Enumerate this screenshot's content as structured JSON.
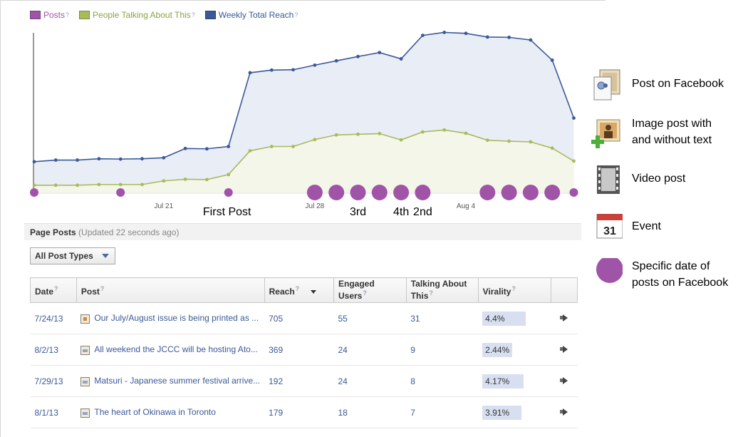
{
  "legend": [
    {
      "label": "Posts",
      "color": "#a054a8",
      "text_color": "#a054a8"
    },
    {
      "label": "People Talking About This",
      "color": "#a8bb5c",
      "text_color": "#8aa343"
    },
    {
      "label": "Weekly Total Reach",
      "color": "#3b5998",
      "text_color": "#3b5998"
    }
  ],
  "help_mark": "?",
  "chart_data": {
    "type": "line",
    "x_tick_labels": [
      {
        "label": "Jul 21",
        "index": 6
      },
      {
        "label": "Jul 28",
        "index": 13
      },
      {
        "label": "Aug 4",
        "index": 20
      }
    ],
    "series": [
      {
        "name": "Weekly Total Reach",
        "color": "#3b5998",
        "fill": "#e9edf6",
        "values": [
          93,
          98,
          98,
          102,
          101,
          102,
          105,
          133,
          132,
          139,
          362,
          370,
          371,
          385,
          398,
          411,
          423,
          404,
          475,
          484,
          481,
          470,
          469,
          461,
          400,
          225
        ]
      },
      {
        "name": "People Talking About This",
        "color": "#a8bb5c",
        "fill": "#f4f6ea",
        "values": [
          22,
          22,
          22,
          24,
          24,
          24,
          35,
          40,
          39,
          54,
          126,
          139,
          139,
          160,
          174,
          176,
          178,
          159,
          183,
          189,
          179,
          158,
          155,
          153,
          134,
          95
        ]
      }
    ],
    "posts": [
      {
        "index": 0,
        "size": "small"
      },
      {
        "index": 4,
        "size": "small"
      },
      {
        "index": 9,
        "size": "small"
      },
      {
        "index": 13,
        "size": "large"
      },
      {
        "index": 14,
        "size": "large"
      },
      {
        "index": 15,
        "size": "large"
      },
      {
        "index": 16,
        "size": "large"
      },
      {
        "index": 17,
        "size": "large"
      },
      {
        "index": 18,
        "size": "large"
      },
      {
        "index": 21,
        "size": "large"
      },
      {
        "index": 22,
        "size": "large"
      },
      {
        "index": 23,
        "size": "large"
      },
      {
        "index": 24,
        "size": "large"
      },
      {
        "index": 25,
        "size": "small"
      }
    ],
    "annotations": [
      {
        "label": "First Post",
        "index": 9
      },
      {
        "label": "3rd",
        "index": 15
      },
      {
        "label": "4th",
        "index": 17
      },
      {
        "label": "2nd",
        "index": 18
      }
    ],
    "ylim": [
      0,
      520
    ]
  },
  "page_posts": {
    "title": "Page Posts",
    "updated": "(Updated 22 seconds ago)"
  },
  "filter": {
    "label": "All Post Types"
  },
  "table": {
    "headers": {
      "date": "Date",
      "post": "Post",
      "reach": "Reach",
      "engaged": "Engaged Users",
      "talking": "Talking About This",
      "virality": "Virality"
    },
    "rows": [
      {
        "date": "7/24/13",
        "post": "Our July/August issue is being printed as ...",
        "icon": "image-post-icon",
        "reach": "705",
        "engaged": "55",
        "talking": "31",
        "virality": "4.4%",
        "vir_frac": 0.044
      },
      {
        "date": "8/2/13",
        "post": "All weekend the JCCC will be hosting Ato...",
        "icon": "link-post-icon",
        "reach": "369",
        "engaged": "24",
        "talking": "9",
        "virality": "2.44%",
        "vir_frac": 0.0244
      },
      {
        "date": "7/29/13",
        "post": "Matsuri - Japanese summer festival arrive...",
        "icon": "link-post-icon",
        "reach": "192",
        "engaged": "24",
        "talking": "8",
        "virality": "4.17%",
        "vir_frac": 0.0417
      },
      {
        "date": "8/1/13",
        "post": "The heart of Okinawa in Toronto",
        "icon": "link-post-icon",
        "reach": "179",
        "engaged": "18",
        "talking": "7",
        "virality": "3.91%",
        "vir_frac": 0.0391
      }
    ]
  },
  "key": [
    {
      "label_lines": [
        "Post on Facebook"
      ],
      "icon": "post-on-facebook-icon"
    },
    {
      "label_lines": [
        "Image post with",
        "and without text"
      ],
      "icon": "image-post-icon"
    },
    {
      "label_lines": [
        "Video post"
      ],
      "icon": "video-post-icon"
    },
    {
      "label_lines": [
        "Event"
      ],
      "icon": "event-calendar-icon",
      "calendar_day": "31"
    },
    {
      "label_lines": [
        "Specific date of",
        "posts on Facebook"
      ],
      "icon": "post-dot-icon",
      "color": "#a054a8"
    }
  ]
}
